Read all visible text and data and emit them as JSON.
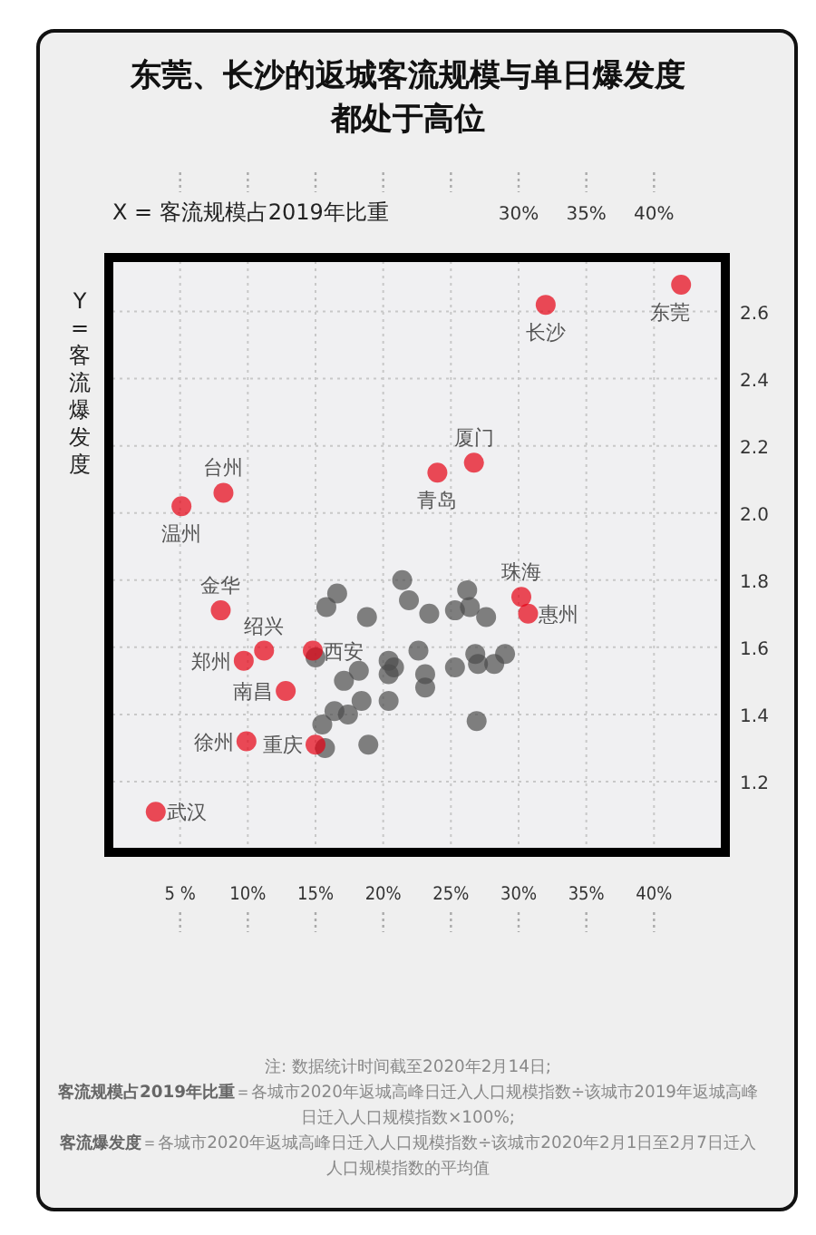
{
  "chart_data": {
    "type": "scatter",
    "title": "东莞、长沙的返城客流规模与单日爆发度都处于高位",
    "x2label": "X = 客流规模占2019年比重",
    "ylabel": "Y = 客流爆发度",
    "xlim": [
      0,
      45
    ],
    "ylim": [
      1.0,
      2.75
    ],
    "x2lim": [
      0,
      45
    ],
    "xticks": [
      {
        "value": 5,
        "label": "5 %"
      },
      {
        "value": 10,
        "label": "10%"
      },
      {
        "value": 15,
        "label": "15%"
      },
      {
        "value": 20,
        "label": "20%"
      },
      {
        "value": 25,
        "label": "25%"
      },
      {
        "value": 30,
        "label": "30%"
      },
      {
        "value": 35,
        "label": "35%"
      },
      {
        "value": 40,
        "label": "40%"
      }
    ],
    "x2ticks": [
      {
        "value": 5,
        "label": null
      },
      {
        "value": 10,
        "label": null
      },
      {
        "value": 15,
        "label": null
      },
      {
        "value": 20,
        "label": null
      },
      {
        "value": 25,
        "label": null
      },
      {
        "value": 30,
        "label": "30%"
      },
      {
        "value": 35,
        "label": "35%"
      },
      {
        "value": 40,
        "label": "40%"
      }
    ],
    "yticks": [
      1.2,
      1.4,
      1.6,
      1.8,
      {
        "value": 2,
        "label": "2.0"
      },
      2.2,
      2.4,
      2.6
    ],
    "grid": true,
    "marker": "circle",
    "series": [
      {
        "color": "#4d4d4d",
        "x": [
          21.4,
          16.6,
          15.8,
          21.9,
          23.4,
          25.3,
          26.2,
          26.4,
          27.6,
          18.8,
          15.0,
          20.4,
          22.6,
          20.8,
          20.4,
          18.2,
          23.1,
          23.1,
          17.1,
          25.3,
          26.8,
          27.0,
          28.2,
          29.0,
          16.4,
          17.4,
          18.4,
          20.4,
          15.5,
          15.7,
          18.9,
          26.9
        ],
        "values": [
          1.8,
          1.76,
          1.72,
          1.74,
          1.7,
          1.71,
          1.77,
          1.72,
          1.69,
          1.69,
          1.57,
          1.56,
          1.59,
          1.54,
          1.52,
          1.53,
          1.52,
          1.48,
          1.5,
          1.54,
          1.58,
          1.55,
          1.55,
          1.58,
          1.41,
          1.4,
          1.44,
          1.44,
          1.37,
          1.3,
          1.31,
          1.38
        ]
      },
      {
        "color": "#e60012",
        "x": [
          42.0,
          32.0,
          26.7,
          24.0,
          8.2,
          5.1,
          8.0,
          30.2,
          30.7,
          11.2,
          14.8,
          9.7,
          12.8,
          9.9,
          15.0,
          3.2
        ],
        "values": [
          2.68,
          2.62,
          2.15,
          2.12,
          2.06,
          2.02,
          1.71,
          1.75,
          1.7,
          1.59,
          1.59,
          1.56,
          1.47,
          1.32,
          1.31,
          1.11
        ]
      }
    ],
    "annotations": [
      {
        "text": "东莞",
        "x": 42.0,
        "y": 2.68
      },
      {
        "text": "长沙",
        "x": 32.0,
        "y": 2.62
      },
      {
        "text": "厦门",
        "x": 26.7,
        "y": 2.15
      },
      {
        "text": "青岛",
        "x": 24.0,
        "y": 2.12
      },
      {
        "text": "台州",
        "x": 8.2,
        "y": 2.06
      },
      {
        "text": "温州",
        "x": 5.1,
        "y": 2.02
      },
      {
        "text": "金华",
        "x": 8.0,
        "y": 1.71
      },
      {
        "text": "珠海",
        "x": 30.2,
        "y": 1.75
      },
      {
        "text": "惠州",
        "x": 30.7,
        "y": 1.7
      },
      {
        "text": "绍兴",
        "x": 11.2,
        "y": 1.59
      },
      {
        "text": "西安",
        "x": 14.8,
        "y": 1.59
      },
      {
        "text": "郑州",
        "x": 9.7,
        "y": 1.56
      },
      {
        "text": "南昌",
        "x": 12.8,
        "y": 1.47
      },
      {
        "text": "徐州",
        "x": 9.9,
        "y": 1.32
      },
      {
        "text": "重庆",
        "x": 15.0,
        "y": 1.31
      },
      {
        "text": "武汉",
        "x": 3.2,
        "y": 1.11
      },
      "注: 数据统计时间截至2020年2月14日;",
      "**客流规模占2019年比重**＝各城市2020年返城高峰日迁入人口规模指数÷该城市2019年返城高峰日迁入人口规模指数×100%;",
      "**客流爆发度**＝各城市2020年返城高峰日迁入人口规模指数÷该城市2020年2月1日至2月7日迁入人口规模指数的平均值"
    ]
  }
}
